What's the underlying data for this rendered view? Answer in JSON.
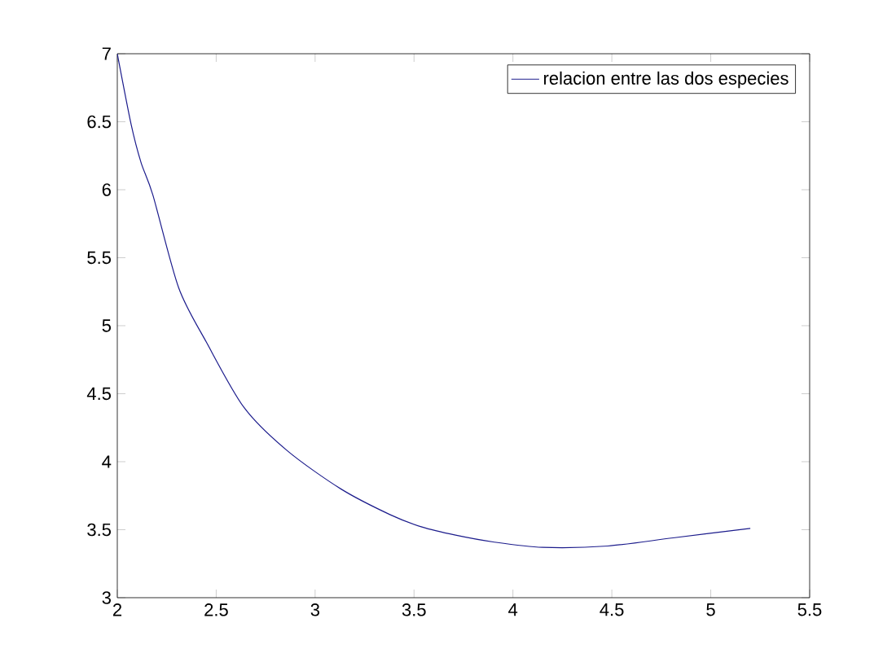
{
  "chart_data": {
    "type": "line",
    "series": [
      {
        "name": "relacion entre las dos especies",
        "color": "#1c1c8c",
        "x": [
          2,
          2.07,
          2.12,
          2.18,
          2.31,
          2.45,
          2.64,
          2.86,
          3.13,
          3.38,
          3.54,
          3.71,
          3.9,
          4.15,
          4.48,
          4.81,
          5.2
        ],
        "values": [
          7,
          6.48,
          6.2,
          5.96,
          5.28,
          4.88,
          4.4,
          4.08,
          3.8,
          3.61,
          3.52,
          3.46,
          3.41,
          3.37,
          3.38,
          3.44,
          3.51
        ]
      }
    ],
    "xlim": [
      2,
      5.5
    ],
    "ylim": [
      3,
      7
    ],
    "xticks": [
      2,
      2.5,
      3,
      3.5,
      4,
      4.5,
      5,
      5.5
    ],
    "yticks": [
      3,
      3.5,
      4,
      4.5,
      5,
      5.5,
      6,
      6.5,
      7
    ],
    "legend": "top right",
    "grid": false,
    "marker": "none",
    "line_style": "solid"
  }
}
